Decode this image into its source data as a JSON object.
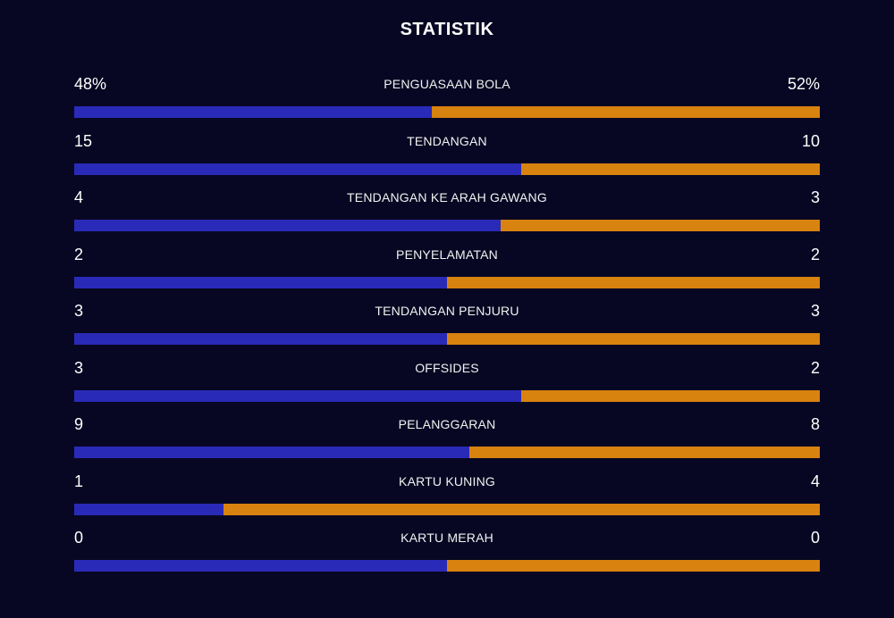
{
  "title": "STATISTIK",
  "colors": {
    "background": "#070723",
    "home": "#2a2ab8",
    "away": "#d8820f"
  },
  "stats": [
    {
      "label": "PENGUASAAN BOLA",
      "home": "48%",
      "away": "52%",
      "home_value": 48,
      "away_value": 52
    },
    {
      "label": "TENDANGAN",
      "home": "15",
      "away": "10",
      "home_value": 15,
      "away_value": 10
    },
    {
      "label": "TENDANGAN KE ARAH GAWANG",
      "home": "4",
      "away": "3",
      "home_value": 4,
      "away_value": 3
    },
    {
      "label": "PENYELAMATAN",
      "home": "2",
      "away": "2",
      "home_value": 2,
      "away_value": 2
    },
    {
      "label": "TENDANGAN PENJURU",
      "home": "3",
      "away": "3",
      "home_value": 3,
      "away_value": 3
    },
    {
      "label": "OFFSIDES",
      "home": "3",
      "away": "2",
      "home_value": 3,
      "away_value": 2
    },
    {
      "label": "PELANGGARAN",
      "home": "9",
      "away": "8",
      "home_value": 9,
      "away_value": 8
    },
    {
      "label": "KARTU KUNING",
      "home": "1",
      "away": "4",
      "home_value": 1,
      "away_value": 4
    },
    {
      "label": "KARTU MERAH",
      "home": "0",
      "away": "0",
      "home_value": 0,
      "away_value": 0
    }
  ]
}
